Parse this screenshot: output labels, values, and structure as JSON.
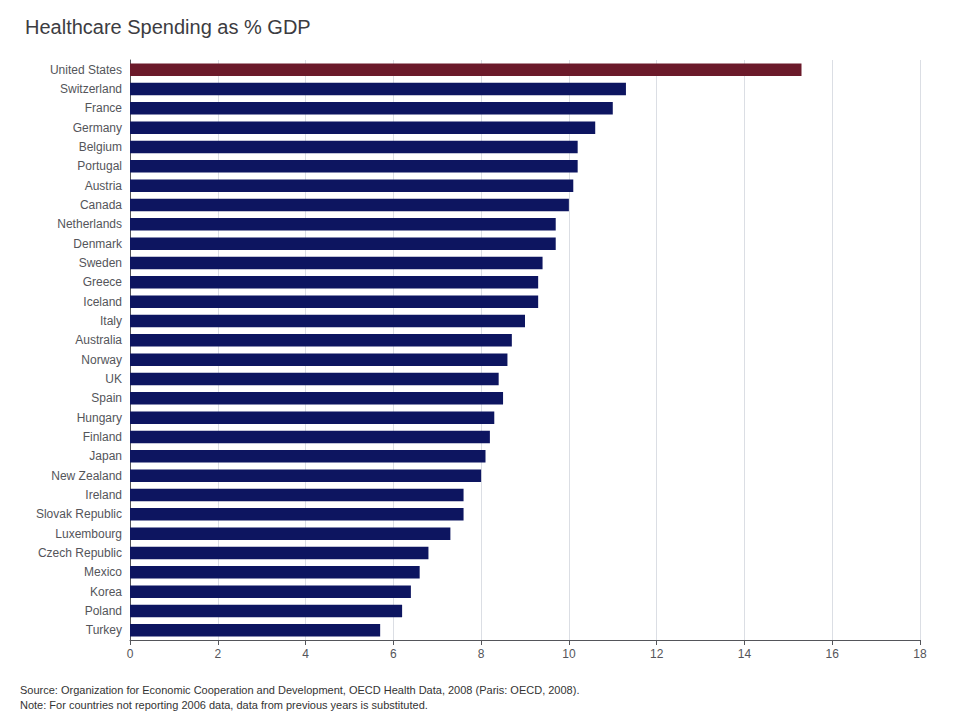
{
  "chart_data": {
    "type": "bar",
    "orientation": "horizontal",
    "title": "Healthcare Spending as % GDP",
    "annotation": "Source: Organization for Economic Cooperation and Development, OECD Health Data, 2008 (Paris: OECD, 2008).\nNote: For countries not reporting 2006 data, data from previous years is substituted.",
    "categories": [
      "United States",
      "Switzerland",
      "France",
      "Germany",
      "Belgium",
      "Portugal",
      "Austria",
      "Canada",
      "Netherlands",
      "Denmark",
      "Sweden",
      "Greece",
      "Iceland",
      "Italy",
      "Australia",
      "Norway",
      "UK",
      "Spain",
      "Hungary",
      "Finland",
      "Japan",
      "New Zealand",
      "Ireland",
      "Slovak Republic",
      "Luxembourg",
      "Czech Republic",
      "Mexico",
      "Korea",
      "Poland",
      "Turkey"
    ],
    "values": [
      15.3,
      11.3,
      11.0,
      10.6,
      10.2,
      10.2,
      10.1,
      10.0,
      9.7,
      9.7,
      9.4,
      9.3,
      9.3,
      9.0,
      8.7,
      8.6,
      8.4,
      8.5,
      8.3,
      8.2,
      8.1,
      8.0,
      7.6,
      7.6,
      7.3,
      6.8,
      6.6,
      6.4,
      6.2,
      5.7
    ],
    "colors": [
      "#6b1a2a",
      "#0d1560",
      "#0d1560",
      "#0d1560",
      "#0d1560",
      "#0d1560",
      "#0d1560",
      "#0d1560",
      "#0d1560",
      "#0d1560",
      "#0d1560",
      "#0d1560",
      "#0d1560",
      "#0d1560",
      "#0d1560",
      "#0d1560",
      "#0d1560",
      "#0d1560",
      "#0d1560",
      "#0d1560",
      "#0d1560",
      "#0d1560",
      "#0d1560",
      "#0d1560",
      "#0d1560",
      "#0d1560",
      "#0d1560",
      "#0d1560",
      "#0d1560",
      "#0d1560"
    ],
    "xlim": [
      0,
      18
    ],
    "xticks": [
      0,
      2,
      4,
      6,
      8,
      10,
      12,
      14,
      16,
      18
    ],
    "grid": true
  }
}
